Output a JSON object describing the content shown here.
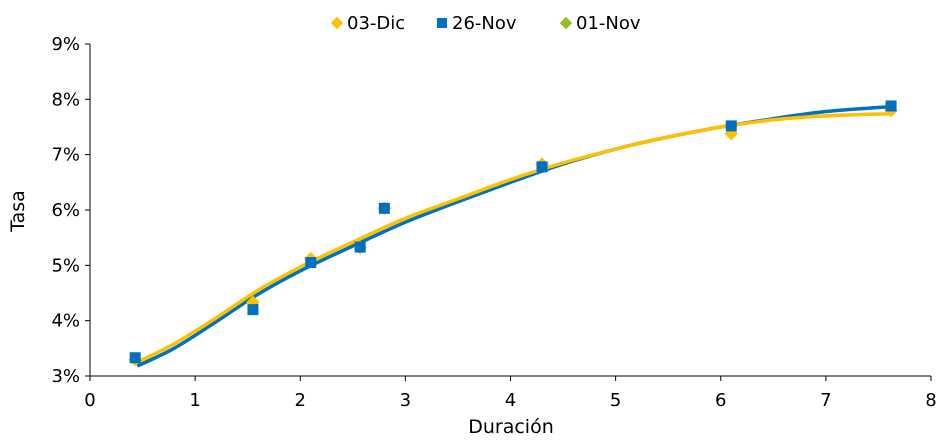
{
  "chart_data": {
    "type": "scatter",
    "title": "",
    "xlabel": "Duración",
    "ylabel": "Tasa",
    "xlim": [
      0,
      8
    ],
    "ylim": [
      3,
      9
    ],
    "x_ticks": [
      "0",
      "1",
      "2",
      "3",
      "4",
      "5",
      "6",
      "7",
      "8"
    ],
    "y_ticks": [
      "3%",
      "4%",
      "5%",
      "6%",
      "7%",
      "8%",
      "9%"
    ],
    "grid": false,
    "legend_position": "top",
    "series": [
      {
        "name": "03-Dic",
        "color": "#FFC000",
        "marker": "diamond",
        "points": [
          [
            0.43,
            3.3
          ],
          [
            1.55,
            4.33
          ],
          [
            2.1,
            5.12
          ],
          [
            2.57,
            5.32
          ],
          [
            2.8,
            6.03
          ],
          [
            4.3,
            6.83
          ],
          [
            6.1,
            7.38
          ],
          [
            7.62,
            7.8
          ]
        ],
        "curve": [
          [
            0.45,
            3.25
          ],
          [
            0.8,
            3.58
          ],
          [
            1.2,
            4.05
          ],
          [
            1.6,
            4.55
          ],
          [
            2.0,
            4.97
          ],
          [
            2.5,
            5.42
          ],
          [
            3.0,
            5.85
          ],
          [
            3.5,
            6.2
          ],
          [
            4.0,
            6.55
          ],
          [
            4.5,
            6.85
          ],
          [
            5.0,
            7.1
          ],
          [
            5.5,
            7.32
          ],
          [
            6.0,
            7.5
          ],
          [
            6.5,
            7.63
          ],
          [
            7.0,
            7.7
          ],
          [
            7.62,
            7.74
          ]
        ]
      },
      {
        "name": "26-Nov",
        "color": "#0070C0",
        "marker": "square",
        "points": [
          [
            0.43,
            3.33
          ],
          [
            1.55,
            4.2
          ],
          [
            2.1,
            5.05
          ],
          [
            2.57,
            5.33
          ],
          [
            2.8,
            6.03
          ],
          [
            4.3,
            6.78
          ],
          [
            6.1,
            7.52
          ],
          [
            7.62,
            7.88
          ]
        ],
        "curve": [
          [
            0.45,
            3.18
          ],
          [
            0.8,
            3.5
          ],
          [
            1.2,
            3.98
          ],
          [
            1.6,
            4.48
          ],
          [
            2.0,
            4.9
          ],
          [
            2.5,
            5.35
          ],
          [
            3.0,
            5.78
          ],
          [
            3.5,
            6.15
          ],
          [
            4.0,
            6.5
          ],
          [
            4.5,
            6.83
          ],
          [
            5.0,
            7.1
          ],
          [
            5.5,
            7.32
          ],
          [
            6.0,
            7.5
          ],
          [
            6.5,
            7.65
          ],
          [
            7.0,
            7.78
          ],
          [
            7.62,
            7.87
          ]
        ]
      },
      {
        "name": "01-Nov",
        "color": "#92C020",
        "marker": "diamond",
        "points": [],
        "curve": []
      }
    ]
  }
}
